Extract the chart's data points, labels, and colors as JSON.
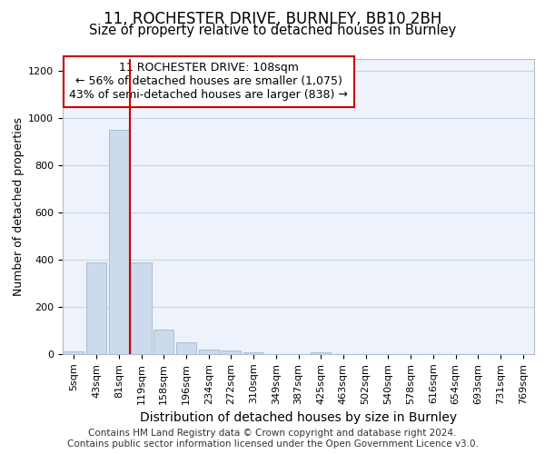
{
  "title1": "11, ROCHESTER DRIVE, BURNLEY, BB10 2BH",
  "title2": "Size of property relative to detached houses in Burnley",
  "xlabel": "Distribution of detached houses by size in Burnley",
  "ylabel": "Number of detached properties",
  "bar_labels": [
    "5sqm",
    "43sqm",
    "81sqm",
    "119sqm",
    "158sqm",
    "196sqm",
    "234sqm",
    "272sqm",
    "310sqm",
    "349sqm",
    "387sqm",
    "425sqm",
    "463sqm",
    "502sqm",
    "540sqm",
    "578sqm",
    "616sqm",
    "654sqm",
    "693sqm",
    "731sqm",
    "769sqm"
  ],
  "bar_values": [
    10,
    390,
    950,
    390,
    105,
    50,
    20,
    15,
    8,
    0,
    0,
    8,
    0,
    0,
    0,
    0,
    0,
    0,
    0,
    0,
    0
  ],
  "bar_color": "#ccdaeb",
  "bar_edge_color": "#a0b8d0",
  "vline_x": 2.5,
  "vline_color": "#cc0000",
  "annotation_text": "11 ROCHESTER DRIVE: 108sqm\n← 56% of detached houses are smaller (1,075)\n43% of semi-detached houses are larger (838) →",
  "annotation_box_facecolor": "#ffffff",
  "annotation_box_edgecolor": "#cc0000",
  "ylim": [
    0,
    1250
  ],
  "yticks": [
    0,
    200,
    400,
    600,
    800,
    1000,
    1200
  ],
  "grid_color": "#c8d4e8",
  "background_color": "#eef2fa",
  "footer_text": "Contains HM Land Registry data © Crown copyright and database right 2024.\nContains public sector information licensed under the Open Government Licence v3.0.",
  "title1_fontsize": 12,
  "title2_fontsize": 10.5,
  "xlabel_fontsize": 10,
  "ylabel_fontsize": 9,
  "tick_fontsize": 8,
  "annotation_fontsize": 9,
  "footer_fontsize": 7.5
}
